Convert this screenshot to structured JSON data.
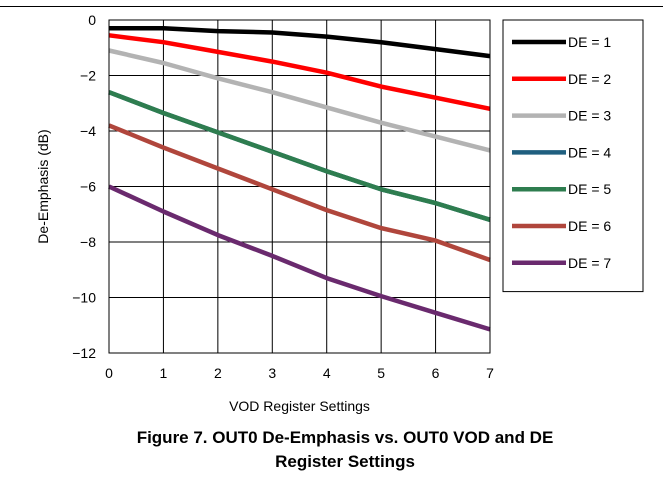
{
  "figure": {
    "caption_line1": "Figure 7. OUT0 De-Emphasis vs. OUT0 VOD and DE",
    "caption_line2": "Register Settings"
  },
  "chart_data": {
    "type": "line",
    "title": "",
    "xlabel": "VOD Register Settings",
    "ylabel": "De-Emphasis (dB)",
    "x": [
      0,
      1,
      2,
      3,
      4,
      5,
      6,
      7
    ],
    "xlim": [
      0,
      7
    ],
    "ylim": [
      -12,
      0
    ],
    "xticks": [
      0,
      1,
      2,
      3,
      4,
      5,
      6,
      7
    ],
    "yticks": [
      0,
      -2,
      -4,
      -6,
      -8,
      -10,
      -12
    ],
    "ytick_labels": [
      "0",
      "−2",
      "−4",
      "−6",
      "−8",
      "−10",
      "−12"
    ],
    "grid": true,
    "legend_position": "right",
    "series": [
      {
        "name": "DE = 1",
        "color": "#000000",
        "values": [
          -0.3,
          -0.3,
          -0.4,
          -0.45,
          -0.6,
          -0.8,
          -1.05,
          -1.3
        ]
      },
      {
        "name": "DE = 2",
        "color": "#ff0000",
        "values": [
          -0.55,
          -0.8,
          -1.15,
          -1.5,
          -1.9,
          -2.4,
          -2.8,
          -3.2
        ]
      },
      {
        "name": "DE = 3",
        "color": "#b3b3b3",
        "values": [
          -1.1,
          -1.55,
          -2.1,
          -2.6,
          -3.15,
          -3.7,
          -4.2,
          -4.7
        ]
      },
      {
        "name": "DE = 4",
        "color": "#1f5f7f",
        "values": [
          -2.6,
          -3.35,
          -4.05,
          -4.75,
          -5.45,
          -6.1,
          -6.6,
          -7.2
        ]
      },
      {
        "name": "DE = 5",
        "color": "#2e7d4f",
        "values": [
          -2.6,
          -3.35,
          -4.05,
          -4.75,
          -5.45,
          -6.1,
          -6.6,
          -7.2
        ]
      },
      {
        "name": "DE = 6",
        "color": "#b0463c",
        "values": [
          -3.8,
          -4.6,
          -5.35,
          -6.1,
          -6.85,
          -7.5,
          -7.95,
          -8.65
        ]
      },
      {
        "name": "DE = 7",
        "color": "#6a2a6e",
        "values": [
          -6.0,
          -6.9,
          -7.75,
          -8.5,
          -9.3,
          -9.95,
          -10.55,
          -11.15
        ]
      }
    ]
  }
}
